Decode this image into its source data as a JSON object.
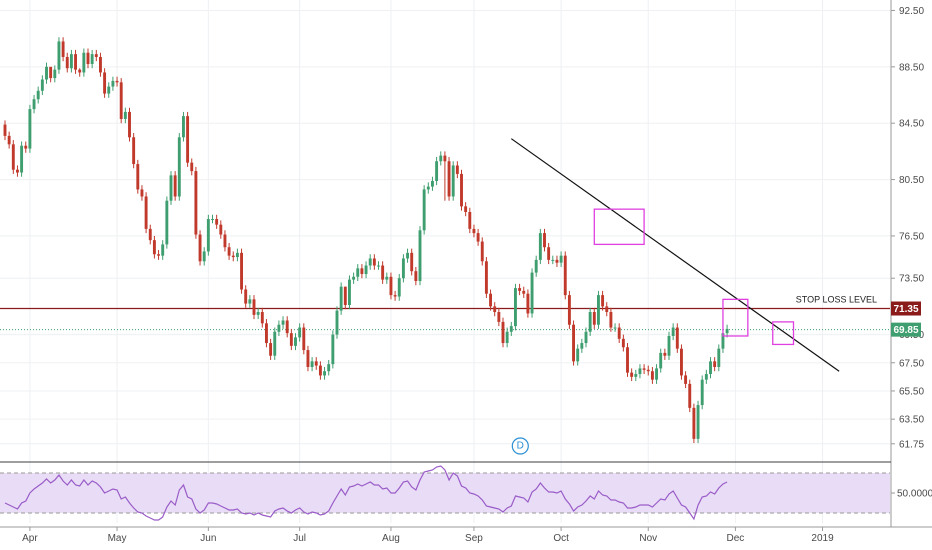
{
  "chart_data": {
    "type": "candlestick",
    "price_axis": {
      "ticks": [
        "92.50",
        "88.50",
        "84.50",
        "80.50",
        "76.50",
        "73.50",
        "69.50",
        "67.50",
        "65.50",
        "63.50",
        "61.75"
      ],
      "tick_values": [
        92.5,
        88.5,
        84.5,
        80.5,
        76.5,
        73.5,
        69.5,
        67.5,
        65.5,
        63.5,
        61.75
      ],
      "ylim": [
        60.6,
        93.1
      ]
    },
    "time_axis": {
      "labels": [
        "Apr",
        "May",
        "Jun",
        "Jul",
        "Aug",
        "Sep",
        "Oct",
        "Nov",
        "Dec",
        "2019"
      ],
      "label_index": [
        6,
        27,
        49,
        71,
        93,
        113,
        134,
        155,
        176,
        197
      ]
    },
    "current_price": {
      "label": "69.85",
      "value": 69.85,
      "color": "#3f9e6f"
    },
    "stop_loss": {
      "label": "71.35",
      "value": 71.35,
      "text": "STOP LOSS LEVEL",
      "color": "#8b1a1a"
    },
    "trendline": {
      "from": {
        "index": 122,
        "price": 83.4
      },
      "to": {
        "index": 201,
        "price": 66.9
      },
      "color": "#111111"
    },
    "highlight_boxes": [
      {
        "i0": 142,
        "i1": 154,
        "p0": 78.4,
        "p1": 75.9
      },
      {
        "i0": 173,
        "i1": 179,
        "p0": 72.0,
        "p1": 69.4
      },
      {
        "i0": 185,
        "i1": 190,
        "p0": 70.4,
        "p1": 68.8
      }
    ],
    "marker": {
      "text": "D",
      "index": 122
    },
    "colors": {
      "up": "#3f9e6f",
      "down": "#c0392b",
      "rsi_line": "#9a5cc8",
      "rsi_band": "#e8dcf6",
      "highlight": "#e040e0"
    },
    "candles": {
      "open": [
        84.4,
        83.6,
        83.0,
        81.2,
        81.0,
        82.9,
        82.7,
        85.5,
        86.2,
        86.8,
        87.6,
        88.5,
        87.7,
        88.3,
        90.3,
        89.2,
        88.4,
        89.4,
        88.3,
        88.1,
        89.5,
        88.7,
        89.4,
        89.2,
        88.1,
        86.6,
        87.1,
        87.5,
        87.4,
        84.8,
        85.3,
        83.5,
        81.6,
        79.8,
        79.3,
        77.0,
        76.2,
        75.2,
        75.1,
        75.9,
        79.0,
        80.8,
        79.3,
        83.5,
        85.0,
        81.7,
        81.1,
        76.6,
        74.7,
        75.4,
        77.7,
        77.7,
        77.3,
        76.6,
        75.7,
        75.1,
        75.0,
        75.3,
        72.7,
        71.7,
        72.0,
        70.9,
        71.1,
        70.3,
        68.9,
        68.0,
        69.7,
        70.2,
        70.5,
        69.6,
        68.7,
        69.3,
        70.0,
        68.4,
        67.2,
        67.6,
        67.3,
        66.6,
        66.9,
        67.4,
        69.5,
        71.2,
        72.9,
        71.6,
        73.4,
        73.6,
        74.2,
        73.8,
        74.4,
        74.9,
        74.4,
        74.4,
        73.4,
        73.6,
        72.3,
        72.2,
        73.5,
        74.9,
        75.3,
        74.0,
        73.3,
        76.9,
        79.8,
        80.0,
        80.4,
        81.8,
        82.2,
        81.8,
        79.3,
        81.5,
        80.9,
        78.6,
        78.2,
        77.0,
        76.7,
        76.1,
        74.7,
        72.4,
        71.5,
        71.1,
        70.4,
        68.9,
        69.7,
        70.1,
        72.8,
        72.6,
        72.4,
        71.0,
        73.9,
        74.8,
        76.7,
        75.7,
        74.8,
        74.8,
        74.6,
        75.1,
        72.3,
        70.2,
        67.6,
        68.5,
        68.9,
        69.7,
        71.1,
        70.2,
        72.3,
        71.5,
        71.1,
        70.0,
        70.0,
        69.2,
        68.6,
        66.8,
        66.5,
        66.7,
        67.1,
        67.0,
        66.9,
        66.3,
        67.1,
        68.2,
        68.0,
        69.4,
        70.0,
        68.5,
        66.6,
        66.0,
        64.3,
        62.1,
        64.5,
        66.3,
        66.7,
        67.6,
        67.2,
        68.5,
        69.6
      ],
      "close": [
        83.6,
        83.0,
        81.2,
        81.0,
        82.9,
        82.7,
        85.5,
        86.2,
        86.8,
        87.6,
        88.5,
        87.7,
        88.3,
        90.3,
        89.2,
        88.4,
        89.4,
        88.3,
        88.1,
        89.5,
        88.7,
        89.4,
        89.2,
        88.1,
        86.6,
        87.1,
        87.5,
        87.4,
        84.8,
        85.3,
        83.5,
        81.6,
        79.8,
        79.3,
        77.0,
        76.2,
        75.2,
        75.1,
        75.9,
        79.0,
        80.8,
        79.3,
        83.5,
        85.0,
        81.7,
        81.1,
        76.6,
        74.7,
        75.4,
        77.7,
        77.7,
        77.3,
        76.6,
        75.7,
        75.1,
        75.0,
        75.3,
        72.7,
        71.7,
        72.0,
        70.9,
        71.1,
        70.3,
        68.9,
        68.0,
        69.7,
        70.2,
        70.5,
        69.6,
        68.7,
        69.3,
        70.0,
        68.4,
        67.2,
        67.6,
        67.3,
        66.6,
        66.9,
        67.4,
        69.5,
        71.2,
        72.9,
        71.6,
        73.4,
        73.6,
        74.2,
        73.8,
        74.4,
        74.9,
        74.4,
        74.4,
        73.4,
        73.6,
        72.3,
        72.2,
        73.5,
        74.9,
        75.3,
        74.0,
        73.3,
        76.9,
        79.8,
        80.0,
        80.4,
        81.8,
        82.2,
        81.8,
        79.3,
        81.5,
        80.9,
        78.6,
        78.2,
        77.0,
        76.7,
        76.1,
        74.7,
        72.4,
        71.5,
        71.1,
        70.4,
        68.9,
        69.7,
        70.1,
        72.8,
        72.6,
        72.4,
        71.0,
        73.9,
        74.8,
        76.7,
        75.7,
        74.8,
        74.8,
        74.6,
        75.1,
        72.3,
        70.2,
        67.6,
        68.5,
        68.9,
        69.7,
        71.1,
        70.2,
        72.3,
        71.5,
        71.1,
        70.0,
        70.0,
        69.2,
        68.6,
        66.8,
        66.5,
        66.7,
        67.1,
        67.0,
        66.9,
        66.3,
        67.1,
        68.2,
        68.0,
        69.4,
        70.0,
        68.5,
        66.6,
        66.0,
        64.3,
        62.1,
        64.5,
        66.3,
        66.7,
        67.6,
        67.2,
        68.5,
        69.6,
        69.9
      ],
      "high": [
        84.7,
        83.9,
        83.3,
        81.5,
        83.2,
        83.2,
        85.8,
        86.5,
        87.1,
        87.9,
        88.8,
        88.0,
        88.6,
        90.6,
        90.6,
        89.5,
        89.7,
        89.7,
        88.4,
        89.8,
        89.8,
        89.7,
        89.7,
        89.5,
        88.4,
        87.4,
        87.8,
        87.8,
        87.7,
        85.6,
        85.6,
        83.8,
        81.9,
        80.1,
        79.6,
        77.3,
        76.5,
        75.5,
        76.2,
        79.3,
        81.1,
        81.1,
        83.8,
        85.3,
        85.3,
        82.0,
        81.4,
        76.9,
        75.7,
        78.0,
        78.0,
        78.0,
        77.6,
        76.9,
        76.0,
        75.4,
        75.6,
        75.6,
        73.0,
        72.3,
        72.3,
        71.4,
        71.4,
        70.6,
        69.2,
        70.0,
        70.5,
        70.8,
        70.8,
        69.9,
        69.6,
        70.3,
        70.3,
        68.7,
        67.9,
        67.9,
        67.6,
        67.2,
        67.7,
        69.8,
        71.5,
        73.2,
        72.9,
        73.7,
        73.9,
        74.5,
        74.5,
        74.7,
        75.2,
        75.2,
        74.7,
        74.7,
        73.9,
        73.9,
        72.6,
        73.8,
        75.2,
        75.6,
        75.6,
        74.3,
        77.2,
        80.1,
        80.3,
        80.7,
        82.1,
        82.5,
        82.5,
        82.1,
        81.8,
        81.8,
        81.2,
        78.9,
        78.5,
        77.3,
        77.0,
        76.4,
        75.0,
        72.7,
        71.8,
        71.4,
        70.7,
        70.0,
        70.4,
        73.1,
        73.1,
        72.9,
        72.7,
        74.2,
        75.1,
        77.0,
        77.0,
        76.0,
        75.1,
        75.1,
        75.4,
        75.4,
        72.6,
        70.5,
        68.8,
        69.2,
        70.0,
        71.4,
        71.4,
        72.6,
        72.6,
        71.8,
        71.4,
        70.3,
        70.3,
        69.5,
        68.9,
        67.1,
        67.0,
        67.4,
        67.4,
        67.3,
        67.2,
        67.4,
        68.5,
        68.5,
        69.7,
        70.3,
        70.3,
        68.8,
        66.9,
        66.3,
        64.6,
        64.8,
        66.6,
        67.0,
        67.9,
        67.9,
        68.8,
        69.9,
        70.2
      ],
      "low": [
        83.3,
        82.7,
        80.9,
        80.7,
        80.7,
        82.4,
        82.4,
        85.2,
        85.9,
        86.5,
        87.3,
        87.4,
        87.4,
        88.0,
        88.9,
        88.1,
        88.1,
        88.0,
        87.8,
        87.8,
        88.4,
        88.4,
        88.9,
        87.8,
        86.3,
        86.3,
        86.8,
        87.1,
        84.5,
        84.5,
        83.2,
        81.3,
        79.5,
        79.0,
        76.7,
        75.9,
        74.9,
        74.8,
        74.8,
        75.6,
        78.7,
        79.0,
        79.0,
        83.2,
        81.4,
        80.8,
        76.3,
        74.4,
        74.4,
        75.1,
        77.4,
        77.0,
        76.3,
        75.4,
        74.8,
        74.7,
        74.7,
        72.4,
        71.4,
        71.4,
        70.6,
        70.6,
        70.0,
        68.6,
        67.7,
        67.7,
        69.4,
        69.9,
        69.3,
        68.4,
        68.4,
        69.0,
        68.1,
        66.9,
        66.9,
        67.0,
        66.3,
        66.3,
        66.6,
        67.1,
        69.2,
        70.9,
        71.3,
        71.3,
        73.1,
        73.3,
        73.5,
        73.5,
        74.1,
        74.1,
        74.1,
        73.1,
        73.1,
        72.0,
        71.9,
        71.9,
        73.2,
        74.6,
        73.7,
        73.0,
        73.0,
        76.6,
        79.5,
        79.7,
        80.1,
        81.5,
        79.0,
        79.0,
        79.0,
        80.6,
        78.3,
        77.9,
        76.7,
        76.4,
        75.8,
        74.4,
        72.1,
        71.2,
        70.8,
        70.1,
        68.6,
        68.6,
        69.4,
        69.8,
        72.3,
        72.1,
        70.7,
        70.7,
        73.6,
        74.5,
        75.4,
        74.5,
        74.5,
        74.3,
        74.3,
        72.0,
        69.9,
        67.3,
        67.3,
        68.2,
        68.6,
        69.4,
        69.9,
        69.9,
        71.2,
        70.8,
        69.7,
        69.7,
        68.9,
        68.3,
        66.5,
        66.2,
        66.2,
        66.4,
        66.7,
        66.6,
        66.0,
        66.0,
        66.8,
        67.7,
        67.7,
        69.1,
        68.2,
        66.3,
        65.7,
        64.0,
        61.8,
        61.8,
        64.2,
        66.0,
        66.4,
        66.9,
        66.9,
        68.2,
        69.3
      ]
    },
    "rsi": {
      "center": 50,
      "center_label": "50.0000",
      "ylim": [
        20,
        80
      ],
      "upper": 70,
      "lower": 30,
      "values": [
        40,
        38,
        36,
        34,
        40,
        42,
        50,
        54,
        57,
        60,
        64,
        60,
        63,
        68,
        62,
        58,
        63,
        58,
        57,
        63,
        58,
        62,
        60,
        56,
        50,
        52,
        54,
        53,
        44,
        46,
        40,
        35,
        31,
        30,
        27,
        25,
        23,
        23,
        26,
        36,
        42,
        38,
        53,
        58,
        46,
        44,
        34,
        30,
        33,
        40,
        40,
        39,
        37,
        35,
        33,
        33,
        34,
        30,
        29,
        30,
        28,
        30,
        28,
        27,
        26,
        32,
        34,
        35,
        32,
        30,
        33,
        35,
        31,
        29,
        31,
        30,
        28,
        29,
        32,
        40,
        47,
        54,
        48,
        56,
        57,
        59,
        57,
        59,
        61,
        58,
        58,
        54,
        55,
        50,
        50,
        55,
        61,
        62,
        56,
        53,
        63,
        71,
        72,
        73,
        76,
        77,
        73,
        63,
        70,
        67,
        57,
        55,
        50,
        49,
        47,
        43,
        37,
        36,
        35,
        34,
        31,
        35,
        37,
        47,
        46,
        45,
        41,
        51,
        54,
        60,
        55,
        51,
        51,
        50,
        52,
        44,
        39,
        32,
        36,
        38,
        42,
        47,
        44,
        52,
        48,
        47,
        43,
        43,
        41,
        40,
        35,
        35,
        36,
        38,
        38,
        38,
        36,
        40,
        44,
        43,
        49,
        52,
        45,
        38,
        36,
        30,
        24,
        38,
        46,
        47,
        51,
        49,
        55,
        59,
        61
      ]
    }
  }
}
